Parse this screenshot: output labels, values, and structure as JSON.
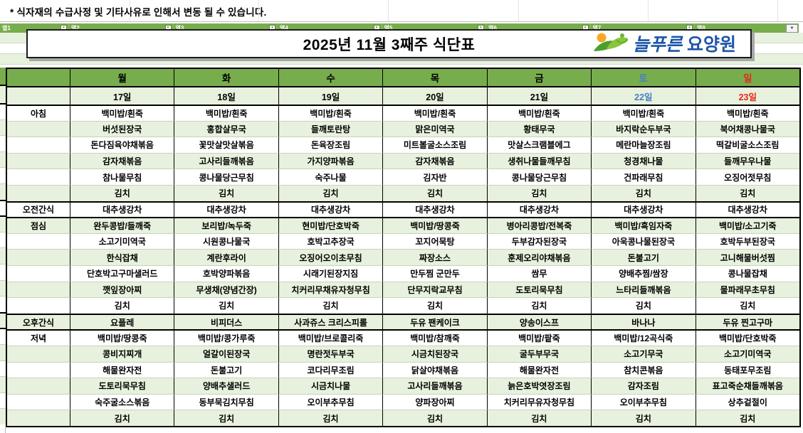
{
  "notice": "*  식자재의 수급사정 및 기타사유로 인해서 변동 될 수 있습니다.",
  "filter_bar": {
    "columns": [
      "열1",
      "열2",
      "열3",
      "열4",
      "열5",
      "열6",
      "열7",
      "열8"
    ],
    "dropdown_icon": "▼",
    "filter_icon": "▾"
  },
  "header": {
    "title": "2025년 11월 3째주 식단표",
    "logo_text": "늘푸른요양원"
  },
  "colors": {
    "header_green": "#78ad4d",
    "band_green": "#e7f1dd",
    "saturday_blue": "#4a7ec1",
    "sunday_red": "#e8251c",
    "logo_blue": "#1c55a8",
    "logo_orange": "#f7a823",
    "logo_green_dark": "#4aa02e",
    "logo_green_light": "#8bc540"
  },
  "menu_table": {
    "days": [
      {
        "label": "월",
        "type": "weekday"
      },
      {
        "label": "화",
        "type": "weekday"
      },
      {
        "label": "수",
        "type": "weekday"
      },
      {
        "label": "목",
        "type": "weekday"
      },
      {
        "label": "금",
        "type": "weekday"
      },
      {
        "label": "토",
        "type": "sat"
      },
      {
        "label": "일",
        "type": "sun"
      }
    ],
    "dates": [
      {
        "label": "17일",
        "type": "weekday"
      },
      {
        "label": "18일",
        "type": "weekday"
      },
      {
        "label": "19일",
        "type": "weekday"
      },
      {
        "label": "20일",
        "type": "weekday"
      },
      {
        "label": "21일",
        "type": "weekday"
      },
      {
        "label": "22일",
        "type": "sat"
      },
      {
        "label": "23일",
        "type": "sun"
      }
    ],
    "sections": [
      {
        "label": "아침",
        "rows": [
          [
            "백미밥/흰죽",
            "백미밥/흰죽",
            "백미밥/흰죽",
            "백미밥/흰죽",
            "백미밥/흰죽",
            "백미밥/흰죽",
            "백미밥/흰죽"
          ],
          [
            "버섯된장국",
            "홍합살무국",
            "들깨토란탕",
            "맑은미역국",
            "황태무국",
            "바지락순두부국",
            "북어채콩나물국"
          ],
          [
            "돈다짐육야채볶음",
            "꽃맛살맛살볶음",
            "돈육장조림",
            "미트볼굴소스조림",
            "맛살스크램블에그",
            "메란마늘장조림",
            "떡갈비굴소스조림"
          ],
          [
            "감자채볶음",
            "고사리들깨볶음",
            "가지양파볶음",
            "감자채볶음",
            "생취나물들깨무침",
            "청경채나물",
            "들깨무우나물"
          ],
          [
            "참나물무침",
            "콩나물당근무침",
            "숙주나물",
            "김자반",
            "콩나물당근무침",
            "건파래무침",
            "오징어젓무침"
          ],
          [
            "김치",
            "김치",
            "김치",
            "김치",
            "김치",
            "김치",
            "김치"
          ]
        ]
      },
      {
        "label": "오전간식",
        "rows": [
          [
            "대추생강차",
            "대추생강차",
            "대추생강차",
            "대추생강차",
            "대추생강차",
            "대추생강차",
            "대추생강차"
          ]
        ]
      },
      {
        "label": "점심",
        "rows": [
          [
            "완두콩밥/들깨죽",
            "보리밥/녹두죽",
            "현미밥/단호박죽",
            "백미밥/땅콩죽",
            "병아리콩밥/전복죽",
            "백미밥/흑임자죽",
            "백미밥/소고기죽"
          ],
          [
            "소고기미역국",
            "시원콩나물국",
            "호박고추장국",
            "꼬지어묵탕",
            "두부감자된장국",
            "아욱콩나물된장국",
            "호박두부된장국"
          ],
          [
            "한식잡채",
            "계란후라이",
            "오징어오이초무침",
            "짜장소스",
            "훈제오리야채볶음",
            "돈불고기",
            "고니해물버섯찜"
          ],
          [
            "단호박고구마샐러드",
            "호박양파볶음",
            "시래기된장지짐",
            "만두찜 군만두",
            "쌈무",
            "양배추찜/쌈장",
            "콩나물잡채"
          ],
          [
            "깻잎장아찌",
            "무생채(양념간장)",
            "치커리무채유자청무침",
            "단무지락교무침",
            "도토리묵무침",
            "느타리들깨볶음",
            "물파래무초무침"
          ],
          [
            "김치",
            "김치",
            "김치",
            "김치",
            "김치",
            "김치",
            "김치"
          ]
        ]
      },
      {
        "label": "오후간식",
        "rows": [
          [
            "요플레",
            "비피더스",
            "사과쥬스 크리스피롤",
            "두유 팬케이크",
            "양송이스프",
            "바나나",
            "두유 찐고구마"
          ]
        ]
      },
      {
        "label": "저녁",
        "rows": [
          [
            "백미밥/땅콩죽",
            "백미밥/콩가루죽",
            "백미밥/브로콜리죽",
            "백미밥/참깨죽",
            "백미밥/팥죽",
            "백미밥/12곡식죽",
            "백미밥/단호박죽"
          ],
          [
            "콩비지찌개",
            "얼갈이된장국",
            "명란젓두부국",
            "시금치된장국",
            "굴두부무국",
            "소고기무국",
            "소고기미역국"
          ],
          [
            "해물완자전",
            "돈불고기",
            "코다리무조림",
            "닭살야채볶음",
            "해물완자전",
            "참치콘볶음",
            "동태포무조림"
          ],
          [
            "도토리묵무침",
            "양배추샐러드",
            "시금치나물",
            "고사리들깨볶음",
            "늙은호박엿장조림",
            "감자조림",
            "표고죽순채들깨볶음"
          ],
          [
            "숙주굴소스볶음",
            "동부묵김치무침",
            "오이부추무침",
            "양파장아찌",
            "치커리무유자청무침",
            "오이부추무침",
            "상추겉절이"
          ],
          [
            "김치",
            "김치",
            "김치",
            "김치",
            "김치",
            "김치",
            "김치"
          ]
        ]
      }
    ]
  }
}
